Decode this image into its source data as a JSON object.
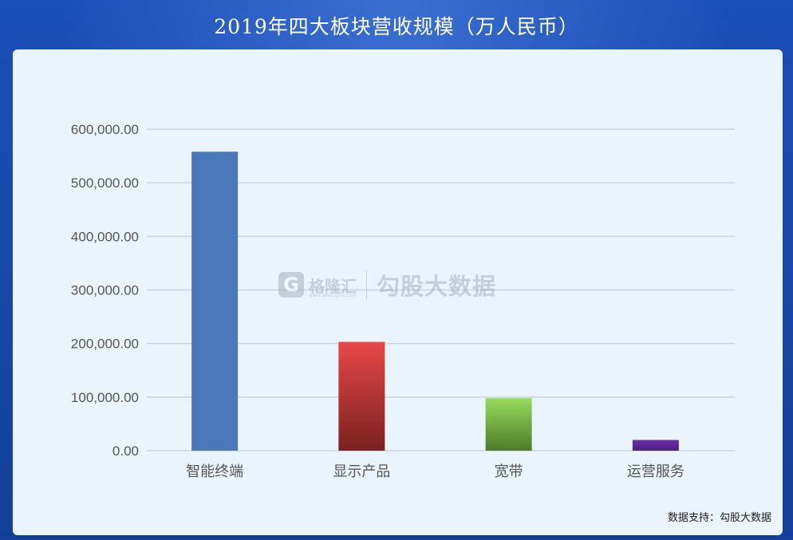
{
  "title": "2019年四大板块营收规模（万人民币）",
  "watermark": {
    "logo_char": "G",
    "brand": "格隆汇",
    "url": "www.gelonghui.com",
    "text": "勾股大数据"
  },
  "source": "数据支持：勾股大数据",
  "chart_data": {
    "type": "bar",
    "title": "2019年四大板块营收规模（万人民币）",
    "xlabel": "",
    "ylabel": "",
    "categories": [
      "智能终端",
      "显示产品",
      "宽带",
      "运营服务"
    ],
    "values": [
      558000,
      203000,
      98000,
      20000
    ],
    "ylim": [
      0,
      600000
    ],
    "yticks": [
      "0.00",
      "100,000.00",
      "200,000.00",
      "300,000.00",
      "400,000.00",
      "500,000.00",
      "600,000.00"
    ],
    "ytick_values": [
      0,
      100000,
      200000,
      300000,
      400000,
      500000,
      600000
    ],
    "grid": true,
    "bar_colors": [
      {
        "top": "#4a78b8",
        "bottom": "#4a78b8"
      },
      {
        "top": "#e84848",
        "bottom": "#7a2020"
      },
      {
        "top": "#96dc5a",
        "bottom": "#4e7a2a"
      },
      {
        "top": "#6a2fa8",
        "bottom": "#4a1f80"
      }
    ]
  }
}
